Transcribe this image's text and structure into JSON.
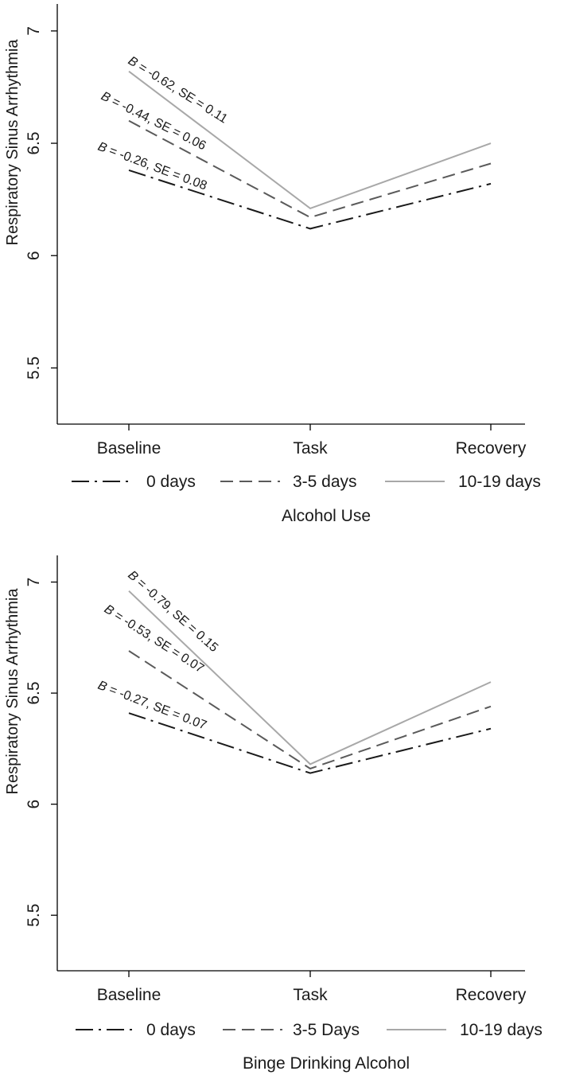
{
  "chart_data": [
    {
      "type": "line",
      "categories": [
        "Baseline",
        "Task",
        "Recovery"
      ],
      "ylabel": "Respiratory Sinus Arrhythmia",
      "ylim": [
        5.25,
        7.12
      ],
      "yticks": [
        "5.5",
        "6",
        "6.5",
        "7"
      ],
      "legend_title": "Alcohol Use",
      "series": [
        {
          "name": "0 days",
          "values": [
            6.38,
            6.12,
            6.32
          ],
          "color": "#1a1a1a",
          "dash": "dashdot",
          "annotation": {
            "b": "B",
            "rest": " = -0.26, SE = 0.08"
          }
        },
        {
          "name": "3-5 days",
          "values": [
            6.6,
            6.17,
            6.41
          ],
          "color": "#5a5a5a",
          "dash": "dash",
          "annotation": {
            "b": "B",
            "rest": " = -0.44, SE = 0.06"
          }
        },
        {
          "name": "10-19 days",
          "values": [
            6.82,
            6.21,
            6.5
          ],
          "color": "#a8a8a8",
          "dash": "solid",
          "annotation": {
            "b": "B",
            "rest": " = -0.62, SE = 0.11"
          }
        }
      ]
    },
    {
      "type": "line",
      "categories": [
        "Baseline",
        "Task",
        "Recovery"
      ],
      "ylabel": "Respiratory Sinus Arrhythmia",
      "ylim": [
        5.25,
        7.12
      ],
      "yticks": [
        "5.5",
        "6",
        "6.5",
        "7"
      ],
      "legend_title": "Binge Drinking Alcohol",
      "series": [
        {
          "name": "0 days",
          "values": [
            6.41,
            6.14,
            6.34
          ],
          "color": "#1a1a1a",
          "dash": "dashdot",
          "annotation": {
            "b": "B",
            "rest": " = -0.27, SE = 0.07"
          }
        },
        {
          "name": "3-5 Days",
          "values": [
            6.69,
            6.16,
            6.44
          ],
          "color": "#5a5a5a",
          "dash": "dash",
          "annotation": {
            "b": "B",
            "rest": " = -0.53, SE = 0.07"
          }
        },
        {
          "name": "10-19 days",
          "values": [
            6.96,
            6.18,
            6.55
          ],
          "color": "#a8a8a8",
          "dash": "solid",
          "annotation": {
            "b": "B",
            "rest": " = -0.79, SE = 0.15"
          }
        }
      ]
    }
  ]
}
